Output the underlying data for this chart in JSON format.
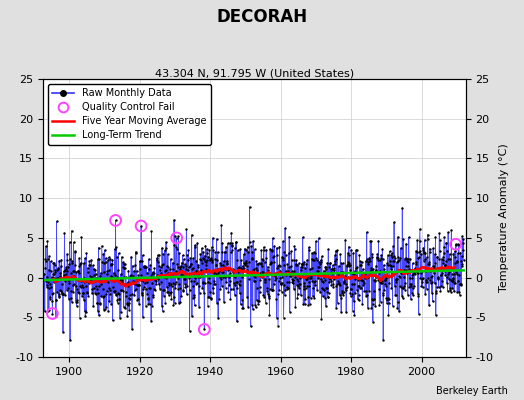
{
  "title": "DECORAH",
  "subtitle": "43.304 N, 91.795 W (United States)",
  "ylabel": "Temperature Anomaly (°C)",
  "attribution": "Berkeley Earth",
  "year_start": 1893,
  "year_end": 2011,
  "ylim": [
    -10,
    25
  ],
  "yticks_left": [
    -10,
    -5,
    0,
    5,
    10,
    15,
    20,
    25
  ],
  "yticks_right": [
    -10,
    -5,
    0,
    5,
    10,
    15,
    20,
    25
  ],
  "xticks": [
    1900,
    1920,
    1940,
    1960,
    1980,
    2000
  ],
  "plot_bg": "#ffffff",
  "fig_bg": "#e0e0e0",
  "raw_color": "#3333ff",
  "moving_avg_color": "#ff0000",
  "trend_color": "#00cc00",
  "qc_fail_color": "#ff44ff",
  "seed": 17
}
